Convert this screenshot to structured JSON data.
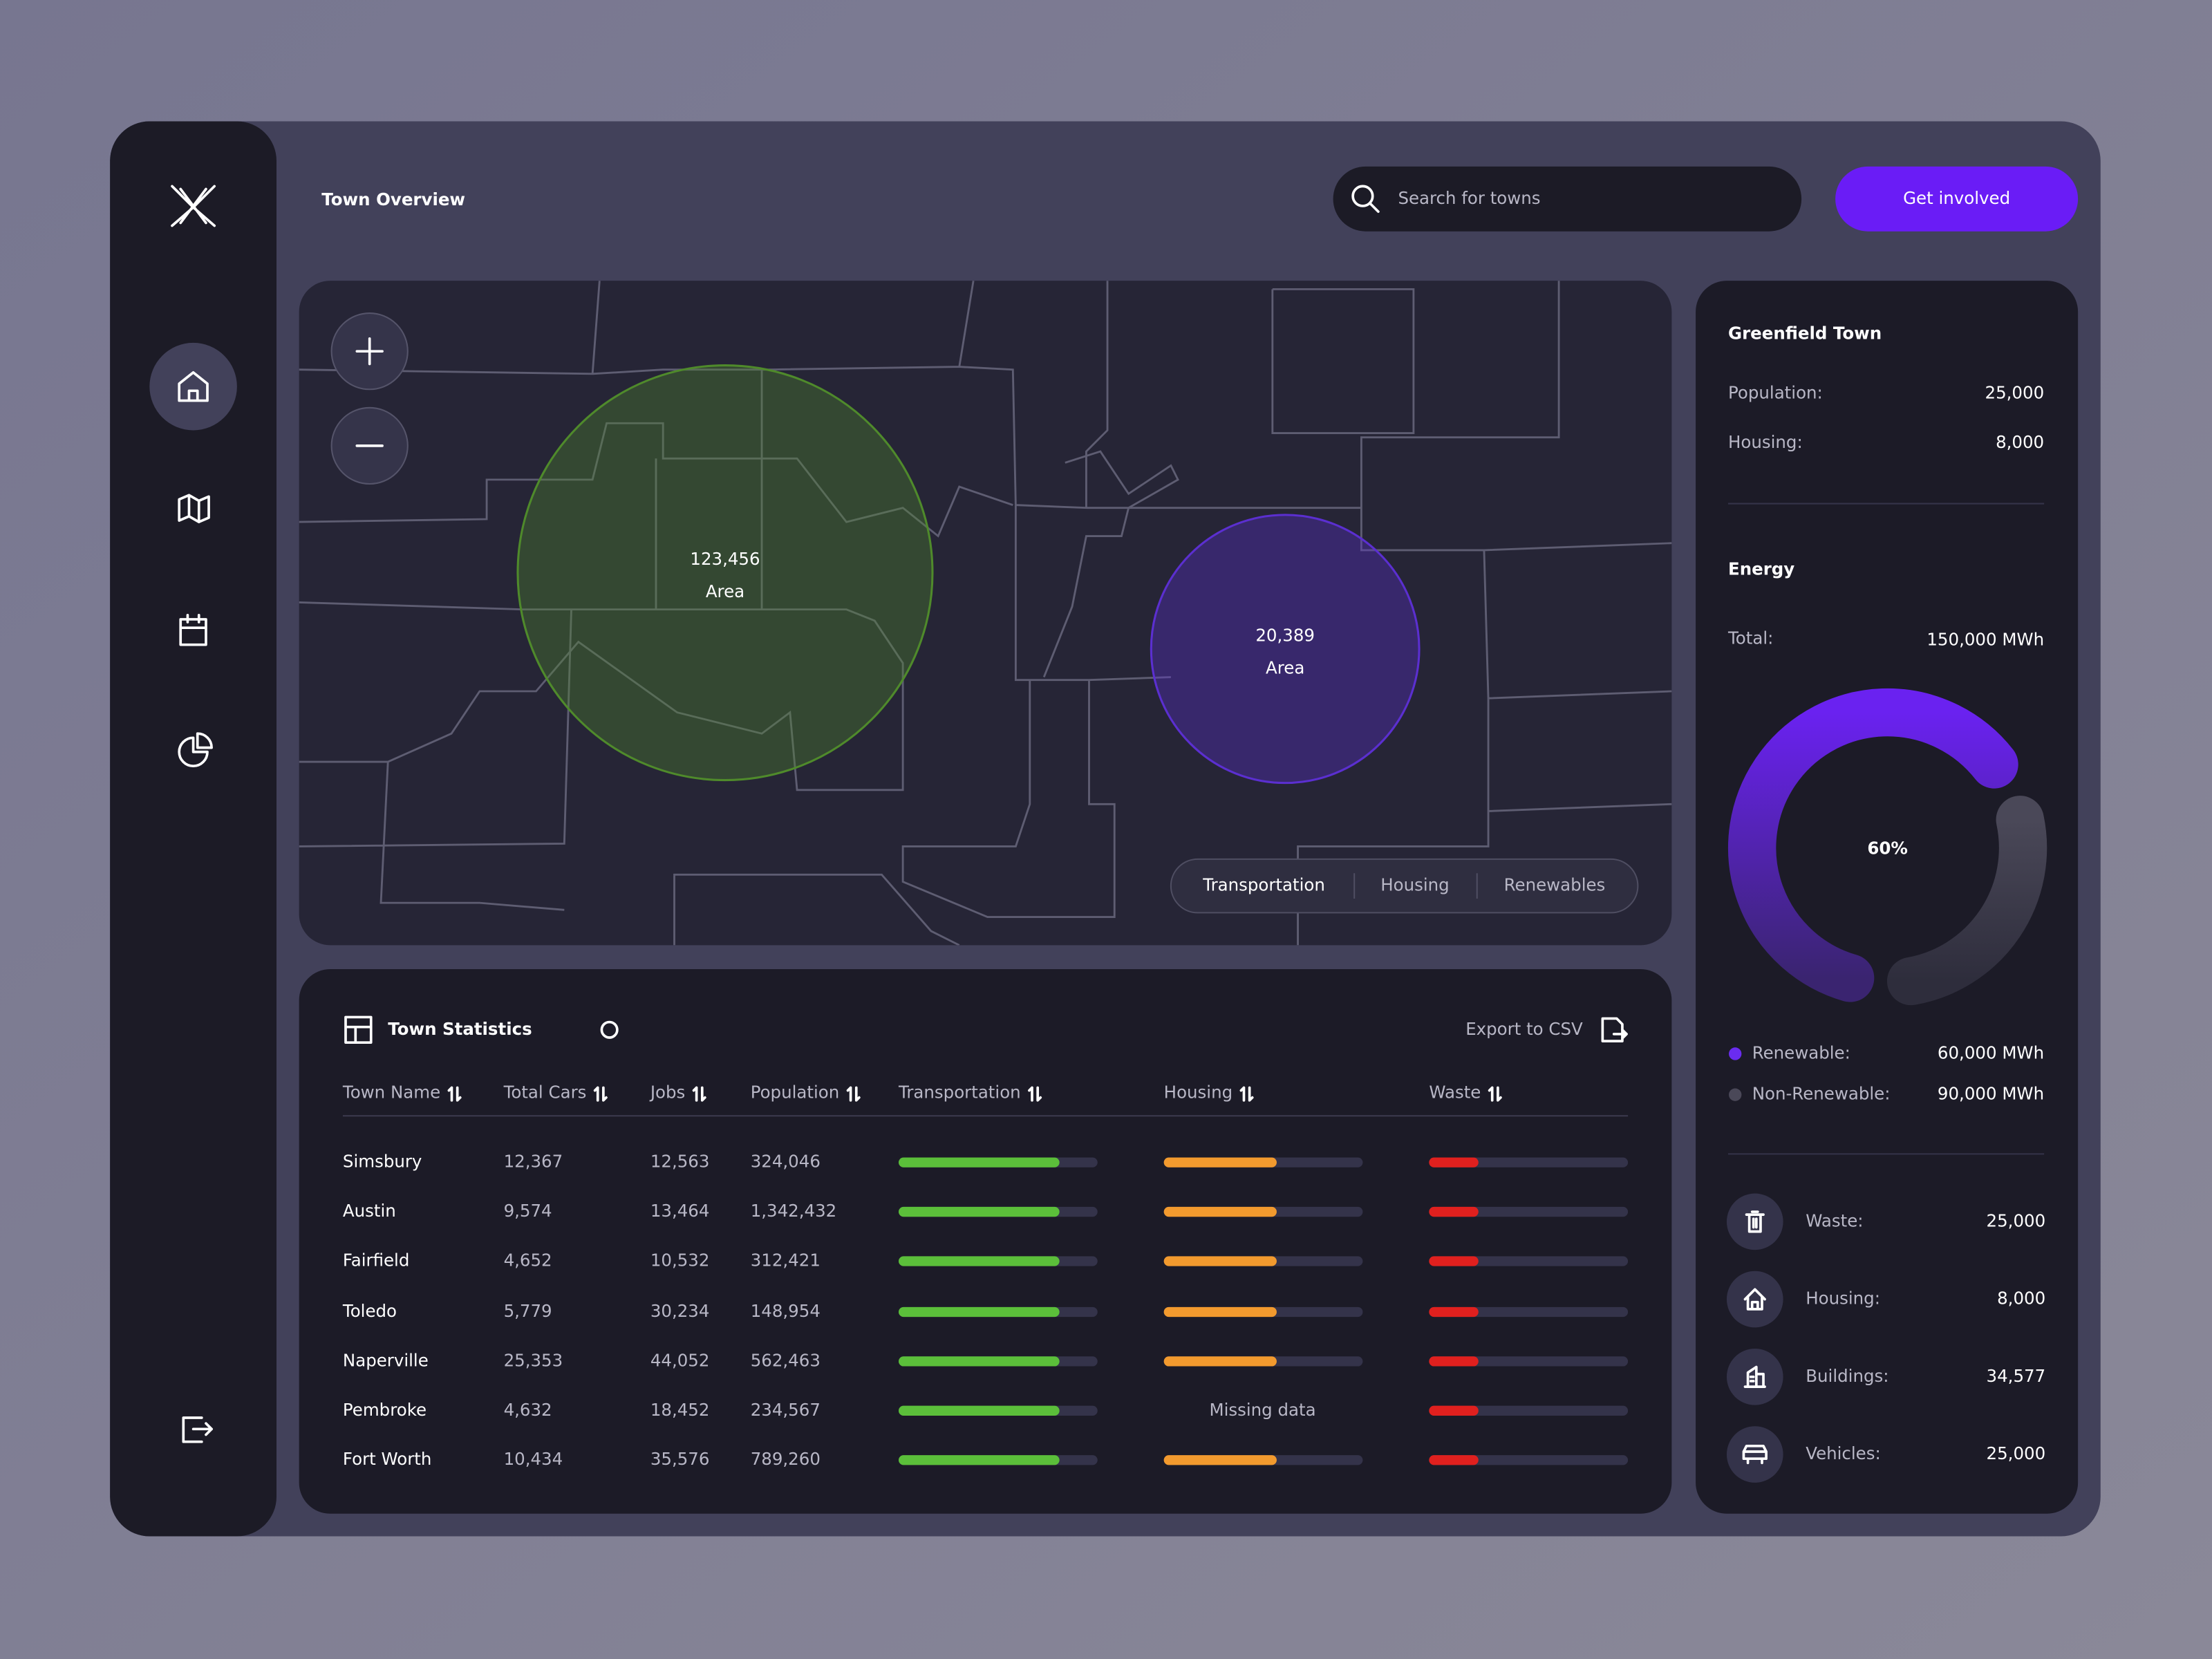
{
  "header": {
    "title": "Town Overview",
    "search_placeholder": "Search for towns",
    "button": "Get involved"
  },
  "map": {
    "bubbles": [
      {
        "value": "123,456",
        "label": "Area",
        "color": "#4f8a2b"
      },
      {
        "value": "20,389",
        "label": "Area",
        "color": "#5b2fd0"
      }
    ],
    "tabs": [
      "Transportation",
      "Housing",
      "Renewables"
    ],
    "active_tab": 0
  },
  "table": {
    "title": "Town Statistics",
    "export": "Export to CSV",
    "columns": [
      "Town Name",
      "Total Cars",
      "Jobs",
      "Population",
      "Transportation",
      "Housing",
      "Waste"
    ],
    "rows": [
      [
        "Simsbury",
        "12,367",
        "12,563",
        "324,046"
      ],
      [
        "Austin",
        "9,574",
        "13,464",
        "1,342,432"
      ],
      [
        "Fairfield",
        "4,652",
        "10,532",
        "312,421"
      ],
      [
        "Toledo",
        "5,779",
        "30,234",
        "148,954"
      ],
      [
        "Naperville",
        "25,353",
        "44,052",
        "562,463"
      ],
      [
        "Pembroke",
        "4,632",
        "18,452",
        "234,567"
      ],
      [
        "Fort Worth",
        "10,434",
        "35,576",
        "789,260"
      ]
    ],
    "notes": [
      {
        "row": 5,
        "column": 5,
        "text": "Missing data"
      }
    ]
  },
  "panel": {
    "town": "Greenfield Town",
    "stats": [
      {
        "label": "Population:",
        "value": "25,000"
      },
      {
        "label": "Housing:",
        "value": "8,000"
      }
    ],
    "energy": {
      "title": "Energy",
      "total_label": "Total:",
      "total": "150,000 MWh",
      "donut": {
        "value": 60,
        "label": "60%"
      },
      "legend": [
        {
          "label": "Renewable:",
          "value": "60,000 MWh",
          "color": "#6a2cf0"
        },
        {
          "label": "Non-Renewable:",
          "value": "90,000 MWh",
          "color": "#4a4858"
        }
      ]
    },
    "metrics": [
      {
        "label": "Waste:",
        "value": "25,000"
      },
      {
        "label": "Housing:",
        "value": "8,000"
      },
      {
        "label": "Buildings:",
        "value": "34,577"
      },
      {
        "label": "Vehicles:",
        "value": "25,000"
      }
    ]
  }
}
